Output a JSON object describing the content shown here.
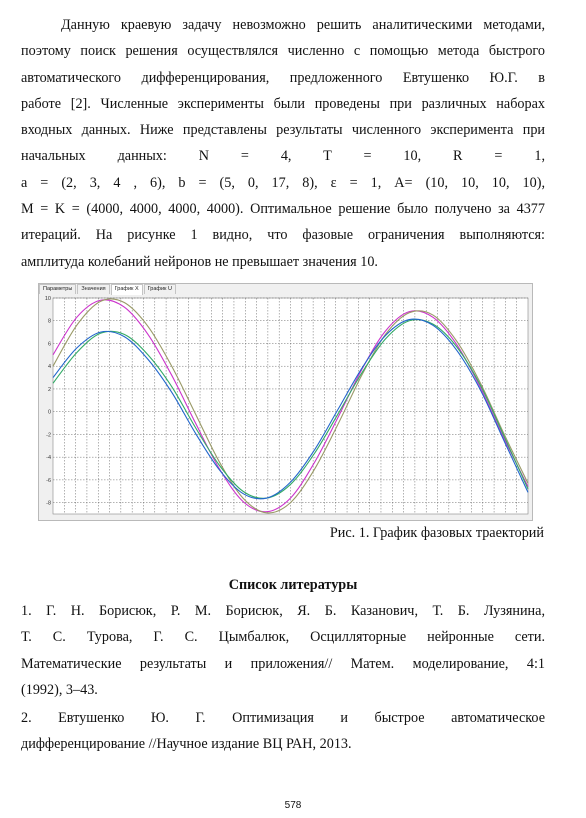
{
  "body": {
    "lines": [
      "Данную краевую задачу невозможно решить аналитическими методами,",
      "поэтому поиск решения осуществлялся численно с помощью метода быстрого",
      "автоматического дифференцирования, предложенного Евтушенко Ю.Г. в",
      "работе [2]. Численные эксперименты были проведены при различных наборах",
      "входных данных. Ниже представлены результаты численного эксперимента при",
      "начальных данных: N = 4, T = 10, R = 1,",
      "a = (2, 3, 4 , 6), b = (5, 0, 17, 8), ε = 1, A= (10, 10, 10, 10),",
      "M = K = (4000, 4000, 4000, 4000). Оптимальное решение было получено за 4377",
      "итераций. На рисунке 1 видно, что фазовые ограничения выполняются:",
      "амплитуда колебаний нейронов не превышает значения 10."
    ]
  },
  "figure": {
    "tabs": [
      "Параметры",
      "Значения",
      "График X",
      "График U"
    ],
    "active_tab": 2,
    "caption": "Рис. 1. График фазовых траекторий"
  },
  "chart_data": {
    "type": "line",
    "title": "",
    "xlabel": "",
    "ylabel": "",
    "xlim": [
      0,
      10
    ],
    "ylim": [
      -9,
      10
    ],
    "yticks": [
      10,
      8,
      6,
      4,
      2,
      0,
      -2,
      -4,
      -6,
      -8
    ],
    "grid": true,
    "series": [
      {
        "color": "#cc33cc",
        "x": [
          0,
          0.5,
          1,
          1.5,
          2,
          2.5,
          3,
          3.5,
          4,
          4.5,
          5,
          5.5,
          6,
          6.5,
          7,
          7.5,
          8,
          8.5,
          9,
          9.5,
          10
        ],
        "y": [
          5,
          8.3,
          9.8,
          9.2,
          6.8,
          3.2,
          -1.0,
          -5.0,
          -7.9,
          -8.8,
          -7.6,
          -4.5,
          -0.5,
          3.7,
          7.1,
          8.8,
          8.3,
          5.9,
          2.1,
          -2.4,
          -6.6
        ]
      },
      {
        "color": "#999966",
        "x": [
          0,
          0.5,
          1,
          1.5,
          2,
          2.5,
          3,
          3.5,
          4,
          4.5,
          5,
          5.5,
          6,
          6.5,
          7,
          7.5,
          8,
          8.5,
          9,
          9.5,
          10
        ],
        "y": [
          4,
          7.6,
          9.7,
          9.6,
          7.5,
          4.0,
          -0.2,
          -4.4,
          -7.6,
          -8.9,
          -8.0,
          -5.1,
          -1.1,
          3.2,
          6.8,
          8.7,
          8.5,
          6.2,
          2.5,
          -2.0,
          -6.3
        ]
      },
      {
        "color": "#33aa66",
        "x": [
          0,
          0.5,
          1,
          1.5,
          2,
          2.5,
          3,
          3.5,
          4,
          4.5,
          5,
          5.5,
          6,
          6.5,
          7,
          7.5,
          8,
          8.5,
          9,
          9.5,
          10
        ],
        "y": [
          2.5,
          5.2,
          6.9,
          6.8,
          5.0,
          2.2,
          -1.4,
          -4.7,
          -7.0,
          -7.6,
          -6.4,
          -3.7,
          -0.2,
          3.4,
          6.4,
          8.0,
          7.7,
          5.7,
          2.3,
          -2.2,
          -6.8
        ]
      },
      {
        "color": "#2266cc",
        "x": [
          0,
          0.5,
          1,
          1.5,
          2,
          2.5,
          3,
          3.5,
          4,
          4.5,
          5,
          5.5,
          6,
          6.5,
          7,
          7.5,
          8,
          8.5,
          9,
          9.5,
          10
        ],
        "y": [
          3.0,
          5.6,
          7.0,
          6.6,
          4.6,
          1.7,
          -1.9,
          -5.1,
          -7.2,
          -7.6,
          -6.2,
          -3.4,
          0.2,
          3.8,
          6.7,
          8.1,
          7.6,
          5.4,
          1.9,
          -2.6,
          -7.1
        ]
      }
    ]
  },
  "references": {
    "title": "Список литературы",
    "r1_lines": [
      "1. Г. Н. Борисюк, Р. М. Борисюк, Я. Б. Казанович, Т. Б. Лузянина,",
      "Т. С. Турова, Г. С. Цымбалюк, Осцилляторные нейронные сети.",
      "Математические результаты и приложения// Матем. моделирование, 4:1",
      "(1992), 3–43."
    ],
    "r2_lines": [
      "2. Евтушенко Ю. Г. Оптимизация и быстрое автоматическое",
      "дифференцирование //Научное издание ВЦ РАН, 2013."
    ]
  },
  "page_number": "578"
}
